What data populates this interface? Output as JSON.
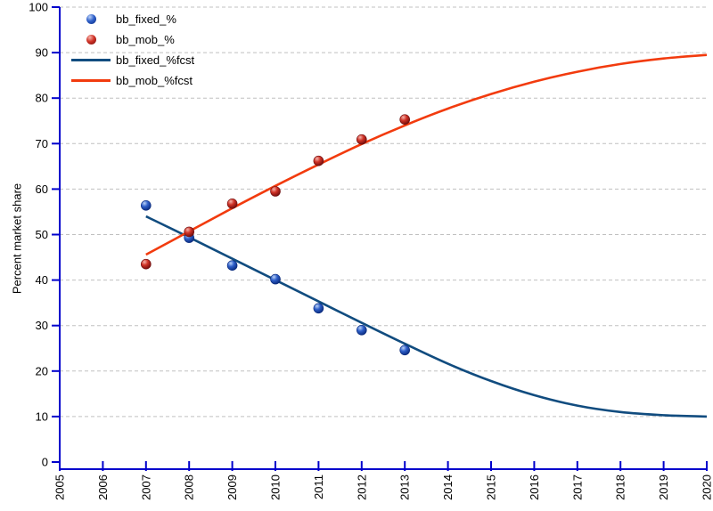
{
  "figure": {
    "ylabel": "Percent market share",
    "background_color": "#FFFFFF",
    "axis_color": "#0000CC",
    "grid_color": "#C0C0C0",
    "text_color": "#000000"
  },
  "legend": {
    "position": "top-left-inside",
    "items": [
      {
        "label": "bb_fixed_%",
        "swatch": "dot",
        "color": "#2E5FC9"
      },
      {
        "label": "bb_mob_%",
        "swatch": "dot",
        "color": "#D03226"
      },
      {
        "label": "bb_fixed_%fcst",
        "swatch": "line",
        "color": "#114C7F"
      },
      {
        "label": "bb_mob_%fcst",
        "swatch": "line",
        "color": "#F23B0E"
      }
    ]
  },
  "chart_data": {
    "type": "scatter",
    "title": "",
    "xlabel": "",
    "ylabel": "Percent market share",
    "xlim": [
      2005,
      2020
    ],
    "ylim": [
      0,
      100
    ],
    "x_ticks": [
      2005,
      2006,
      2007,
      2008,
      2009,
      2010,
      2011,
      2012,
      2013,
      2014,
      2015,
      2016,
      2017,
      2018,
      2019,
      2020
    ],
    "y_ticks": [
      0,
      10,
      20,
      30,
      40,
      50,
      60,
      70,
      80,
      90,
      100
    ],
    "grid": "horizontal-dashed",
    "series": [
      {
        "name": "bb_fixed_%",
        "kind": "scatter",
        "color": "#2E5FC9",
        "marker": {
          "highlight": "#BCD2F6",
          "body": "#2E5FC9",
          "edge": "#0A2B7E"
        },
        "x": [
          2007,
          2008,
          2009,
          2010,
          2011,
          2012,
          2013
        ],
        "y": [
          56.4,
          49.3,
          43.2,
          40.2,
          33.8,
          29.0,
          24.6
        ]
      },
      {
        "name": "bb_mob_%",
        "kind": "scatter",
        "color": "#D03226",
        "marker": {
          "highlight": "#F4B4AC",
          "body": "#D03226",
          "edge": "#700D0D"
        },
        "x": [
          2007,
          2008,
          2009,
          2010,
          2011,
          2012,
          2013
        ],
        "y": [
          43.5,
          50.6,
          56.8,
          59.5,
          66.2,
          70.9,
          75.3
        ]
      },
      {
        "name": "bb_fixed_%fcst",
        "kind": "line",
        "color": "#114C7F",
        "x": [
          2007,
          2008,
          2009,
          2010,
          2011,
          2012,
          2013,
          2014,
          2015,
          2016,
          2017,
          2018,
          2019,
          2020
        ],
        "y": [
          54.0,
          49.4,
          44.7,
          40.0,
          35.3,
          30.6,
          26.0,
          21.6,
          17.8,
          14.7,
          12.4,
          11.0,
          10.3,
          10.0
        ]
      },
      {
        "name": "bb_mob_%fcst",
        "kind": "line",
        "color": "#F23B0E",
        "x": [
          2007,
          2008,
          2009,
          2010,
          2011,
          2012,
          2013,
          2014,
          2015,
          2016,
          2017,
          2018,
          2019,
          2020
        ],
        "y": [
          45.6,
          50.7,
          55.8,
          60.7,
          65.4,
          69.9,
          74.0,
          77.7,
          80.9,
          83.6,
          85.8,
          87.5,
          88.7,
          89.5
        ]
      }
    ]
  }
}
